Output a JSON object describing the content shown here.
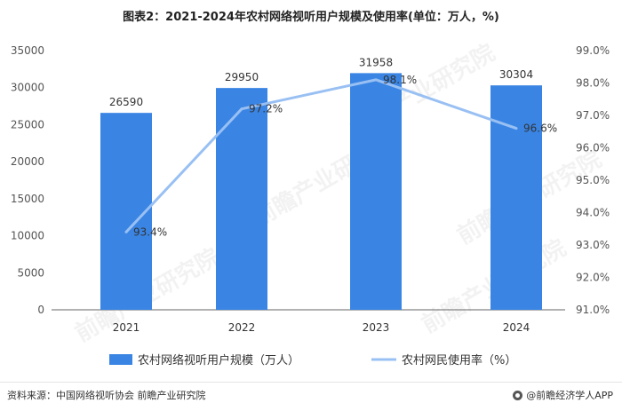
{
  "title": "图表2：2021-2024年农村网络视听用户规模及使用率(单位：万人，%)",
  "source_text": "资料来源：中国网络视听协会 前瞻产业研究院",
  "brand_text": "@前瞻经济学人APP",
  "watermark_text": "前瞻产业研究院",
  "colors": {
    "bar": "#3A85E4",
    "line": "#99C0F3",
    "axis": "#666666",
    "grid": "#d9d9d9"
  },
  "chart_data": {
    "type": "bar",
    "title": "图表2：2021-2024年农村网络视听用户规模及使用率(单位：万人，%)",
    "categories": [
      "2021",
      "2022",
      "2023",
      "2024"
    ],
    "series": [
      {
        "name": "农村网络视听用户规模（万人）",
        "type": "bar",
        "axis": "left",
        "values": [
          26590,
          29950,
          31958,
          30304
        ],
        "labels": [
          "26590",
          "29950",
          "31958",
          "30304"
        ]
      },
      {
        "name": "农村网民使用率（%）",
        "type": "line",
        "axis": "right",
        "values": [
          93.4,
          97.2,
          98.1,
          96.6
        ],
        "labels": [
          "93.4%",
          "97.2%",
          "98.1%",
          "96.6%"
        ]
      }
    ],
    "ylim_left": [
      0,
      35000
    ],
    "yticks_left": [
      "0",
      "5000",
      "10000",
      "15000",
      "20000",
      "25000",
      "30000",
      "35000"
    ],
    "ylim_right": [
      91,
      99
    ],
    "yticks_right": [
      "91.0%",
      "92.0%",
      "93.0%",
      "94.0%",
      "95.0%",
      "96.0%",
      "97.0%",
      "98.0%",
      "99.0%"
    ],
    "grid": false,
    "legend_position": "bottom"
  }
}
